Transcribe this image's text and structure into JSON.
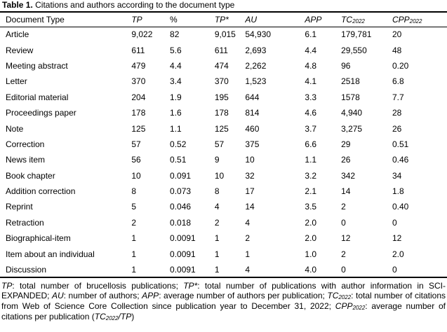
{
  "colors": {
    "text": "#000000",
    "rule": "#000000",
    "tick": "#8a8a8a",
    "bg": "#ffffff"
  },
  "title": {
    "label": "Table 1.",
    "text": " Citations and authors according to the document type"
  },
  "table": {
    "columns": [
      {
        "id": "document_type",
        "label": "Document Type",
        "italic": false
      },
      {
        "id": "tp",
        "label": "TP",
        "italic": true
      },
      {
        "id": "pct",
        "label": "%",
        "italic": false
      },
      {
        "id": "tp_star",
        "label": "TP*",
        "italic": true
      },
      {
        "id": "au",
        "label": "AU",
        "italic": true
      },
      {
        "id": "app",
        "label": "APP",
        "italic": true
      },
      {
        "id": "tc2022",
        "label": "TC",
        "sub": "2022",
        "italic": true
      },
      {
        "id": "cpp2022",
        "label": "CPP",
        "sub": "2022",
        "italic": true
      }
    ],
    "rows": [
      [
        "Article",
        "9,022",
        "82",
        "9,015",
        "54,930",
        "6.1",
        "179,781",
        "20"
      ],
      [
        "Review",
        "611",
        "5.6",
        "611",
        "2,693",
        "4.4",
        "29,550",
        "48"
      ],
      [
        "Meeting abstract",
        "479",
        "4.4",
        "474",
        "2,262",
        "4.8",
        "96",
        "0.20"
      ],
      [
        "Letter",
        "370",
        "3.4",
        "370",
        "1,523",
        "4.1",
        "2518",
        "6.8"
      ],
      [
        "Editorial material",
        "204",
        "1.9",
        "195",
        "644",
        "3.3",
        "1578",
        "7.7"
      ],
      [
        "Proceedings paper",
        "178",
        "1.6",
        "178",
        "814",
        "4.6",
        "4,940",
        "28"
      ],
      [
        "Note",
        "125",
        "1.1",
        "125",
        "460",
        "3.7",
        "3,275",
        "26"
      ],
      [
        "Correction",
        "57",
        "0.52",
        "57",
        "375",
        "6.6",
        "29",
        "0.51"
      ],
      [
        "News item",
        "56",
        "0.51",
        "9",
        "10",
        "1.1",
        "26",
        "0.46"
      ],
      [
        "Book chapter",
        "10",
        "0.091",
        "10",
        "32",
        "3.2",
        "342",
        "34"
      ],
      [
        "Addition correction",
        "8",
        "0.073",
        "8",
        "17",
        "2.1",
        "14",
        "1.8"
      ],
      [
        "Reprint",
        "5",
        "0.046",
        "4",
        "14",
        "3.5",
        "2",
        "0.40"
      ],
      [
        "Retraction",
        "2",
        "0.018",
        "2",
        "4",
        "2.0",
        "0",
        "0"
      ],
      [
        "Biographical-item",
        "1",
        "0.0091",
        "1",
        "2",
        "2.0",
        "12",
        "12"
      ],
      [
        "Item about an individual",
        "1",
        "0.0091",
        "1",
        "1",
        "1.0",
        "2",
        "2.0"
      ],
      [
        "Discussion",
        "1",
        "0.0091",
        "1",
        "4",
        "4.0",
        "0",
        "0"
      ]
    ]
  },
  "footnote": {
    "segments": [
      {
        "t": "TP",
        "s": "i"
      },
      {
        "t": ": total number of brucellosis publications; "
      },
      {
        "t": "TP*",
        "s": "i"
      },
      {
        "t": ": total number of publications with author information in SCI-EXPANDED; "
      },
      {
        "t": "AU",
        "s": "i"
      },
      {
        "t": ": number of authors; "
      },
      {
        "t": "APP",
        "s": "i"
      },
      {
        "t": ": average number of authors per publication; "
      },
      {
        "t": "TC",
        "s": "i"
      },
      {
        "t": "2022",
        "s": "isub"
      },
      {
        "t": ": total number of citations from Web of Science Core Collection since publication year to December 31, 2022; "
      },
      {
        "t": "CPP",
        "s": "i"
      },
      {
        "t": "2022",
        "s": "isub"
      },
      {
        "t": ": average number of citations per publication ("
      },
      {
        "t": "TC",
        "s": "i"
      },
      {
        "t": "2022",
        "s": "isub"
      },
      {
        "t": "/TP",
        "s": "i"
      },
      {
        "t": ")"
      }
    ]
  }
}
